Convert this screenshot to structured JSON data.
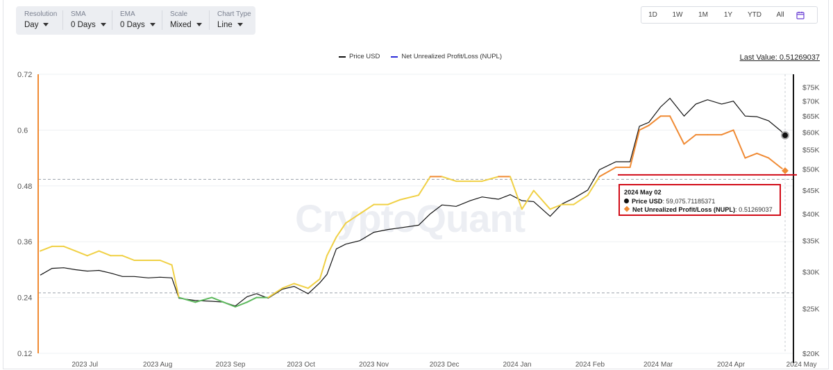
{
  "controls": [
    {
      "label": "Resolution",
      "value": "Day"
    },
    {
      "label": "SMA",
      "value": "0 Days"
    },
    {
      "label": "EMA",
      "value": "0 Days"
    },
    {
      "label": "Scale",
      "value": "Mixed"
    },
    {
      "label": "Chart Type",
      "value": "Line"
    }
  ],
  "ranges": [
    "1D",
    "1W",
    "1M",
    "1Y",
    "YTD",
    "All"
  ],
  "last_value": "Last Value: 0.51269037",
  "watermark": "CryptoQuant",
  "tooltip": {
    "date": "2024 May 02",
    "price_label": "Price USD",
    "price_value": ": 59,075.71185371",
    "nupl_label": "Net Unrealized Profit/Loss (NUPL)",
    "nupl_value": ": 0.51269037"
  },
  "colors": {
    "price": "#111111",
    "nupl_legend": "#2a2ad8",
    "nupl_green": "#5cb85c",
    "nupl_yellow": "#f0d044",
    "nupl_orange": "#f08a33",
    "annotation": "#d10a16"
  },
  "chart_data": {
    "type": "line",
    "legend": [
      "Price USD",
      "Net Unrealized Profit/Loss (NUPL)"
    ],
    "x_tick_labels": [
      "2023 Jul",
      "2023 Aug",
      "2023 Sep",
      "2023 Oct",
      "2023 Nov",
      "2023 Dec",
      "2024 Jan",
      "2024 Feb",
      "2024 Mar",
      "2024 Apr",
      "2024 May"
    ],
    "left_axis": {
      "ticks": [
        "0.72",
        "0.6",
        "0.48",
        "0.36",
        "0.24",
        "0.12"
      ],
      "range": [
        0.12,
        0.72
      ]
    },
    "right_axis": {
      "scale": "log",
      "ticks": [
        "$75K",
        "$70K",
        "$65K",
        "$60K",
        "$55K",
        "$50K",
        "$45K",
        "$40K",
        "$35K",
        "$30K",
        "$25K",
        "$20K"
      ],
      "range": [
        20000,
        80000
      ]
    },
    "x_range": [
      "2023-06-20",
      "2024-05-02"
    ],
    "reference_lines": [
      0.494,
      0.25
    ],
    "series": [
      {
        "name": "Net Unrealized Profit/Loss (NUPL)",
        "axis": "left",
        "x": [
          "2023-06-20",
          "2023-06-25",
          "2023-06-30",
          "2023-07-05",
          "2023-07-10",
          "2023-07-15",
          "2023-07-20",
          "2023-07-25",
          "2023-07-30",
          "2023-08-05",
          "2023-08-10",
          "2023-08-15",
          "2023-08-18",
          "2023-08-25",
          "2023-09-01",
          "2023-09-06",
          "2023-09-11",
          "2023-09-16",
          "2023-09-20",
          "2023-09-25",
          "2023-10-01",
          "2023-10-06",
          "2023-10-12",
          "2023-10-17",
          "2023-10-20",
          "2023-10-24",
          "2023-10-28",
          "2023-11-03",
          "2023-11-09",
          "2023-11-15",
          "2023-11-20",
          "2023-11-28",
          "2023-12-03",
          "2023-12-08",
          "2023-12-14",
          "2023-12-20",
          "2023-12-25",
          "2024-01-01",
          "2024-01-06",
          "2024-01-11",
          "2024-01-16",
          "2024-01-23",
          "2024-01-28",
          "2024-02-02",
          "2024-02-08",
          "2024-02-13",
          "2024-02-20",
          "2024-02-26",
          "2024-03-01",
          "2024-03-05",
          "2024-03-10",
          "2024-03-14",
          "2024-03-20",
          "2024-03-25",
          "2024-03-30",
          "2024-04-05",
          "2024-04-10",
          "2024-04-15",
          "2024-04-20",
          "2024-04-25",
          "2024-04-30",
          "2024-05-02"
        ],
        "y": [
          0.34,
          0.35,
          0.35,
          0.34,
          0.33,
          0.34,
          0.33,
          0.33,
          0.32,
          0.32,
          0.32,
          0.31,
          0.24,
          0.23,
          0.24,
          0.23,
          0.22,
          0.23,
          0.24,
          0.24,
          0.26,
          0.27,
          0.26,
          0.28,
          0.33,
          0.37,
          0.4,
          0.42,
          0.44,
          0.44,
          0.45,
          0.46,
          0.5,
          0.5,
          0.49,
          0.49,
          0.49,
          0.5,
          0.5,
          0.43,
          0.47,
          0.43,
          0.44,
          0.44,
          0.46,
          0.5,
          0.52,
          0.52,
          0.6,
          0.61,
          0.63,
          0.63,
          0.57,
          0.59,
          0.59,
          0.59,
          0.6,
          0.54,
          0.55,
          0.54,
          0.52,
          0.51269037
        ]
      },
      {
        "name": "Price USD",
        "axis": "right",
        "x": [
          "2023-06-20",
          "2023-06-25",
          "2023-06-30",
          "2023-07-05",
          "2023-07-10",
          "2023-07-15",
          "2023-07-20",
          "2023-07-25",
          "2023-07-30",
          "2023-08-05",
          "2023-08-10",
          "2023-08-15",
          "2023-08-18",
          "2023-08-25",
          "2023-09-01",
          "2023-09-06",
          "2023-09-11",
          "2023-09-16",
          "2023-09-20",
          "2023-09-25",
          "2023-10-01",
          "2023-10-06",
          "2023-10-12",
          "2023-10-17",
          "2023-10-20",
          "2023-10-24",
          "2023-10-28",
          "2023-11-03",
          "2023-11-09",
          "2023-11-15",
          "2023-11-20",
          "2023-11-28",
          "2023-12-03",
          "2023-12-08",
          "2023-12-14",
          "2023-12-20",
          "2023-12-25",
          "2024-01-01",
          "2024-01-06",
          "2024-01-11",
          "2024-01-16",
          "2024-01-23",
          "2024-01-28",
          "2024-02-02",
          "2024-02-08",
          "2024-02-13",
          "2024-02-20",
          "2024-02-26",
          "2024-03-01",
          "2024-03-05",
          "2024-03-10",
          "2024-03-14",
          "2024-03-20",
          "2024-03-25",
          "2024-03-30",
          "2024-04-05",
          "2024-04-10",
          "2024-04-15",
          "2024-04-20",
          "2024-04-25",
          "2024-04-30",
          "2024-05-02"
        ],
        "y": [
          29500,
          30500,
          30600,
          30300,
          30100,
          30200,
          29800,
          29300,
          29300,
          29100,
          29200,
          29100,
          26300,
          26000,
          25900,
          25800,
          25300,
          26500,
          26900,
          26300,
          27500,
          27900,
          26900,
          28400,
          29600,
          33600,
          34400,
          35000,
          36500,
          37000,
          37300,
          37800,
          40000,
          41800,
          41500,
          42700,
          43500,
          43000,
          44000,
          42700,
          42500,
          39500,
          42000,
          43200,
          45000,
          49800,
          51800,
          51800,
          61800,
          63000,
          68000,
          71000,
          65000,
          69000,
          70500,
          69000,
          70000,
          65000,
          64800,
          63500,
          60500,
          59075.71185371
        ]
      }
    ]
  }
}
